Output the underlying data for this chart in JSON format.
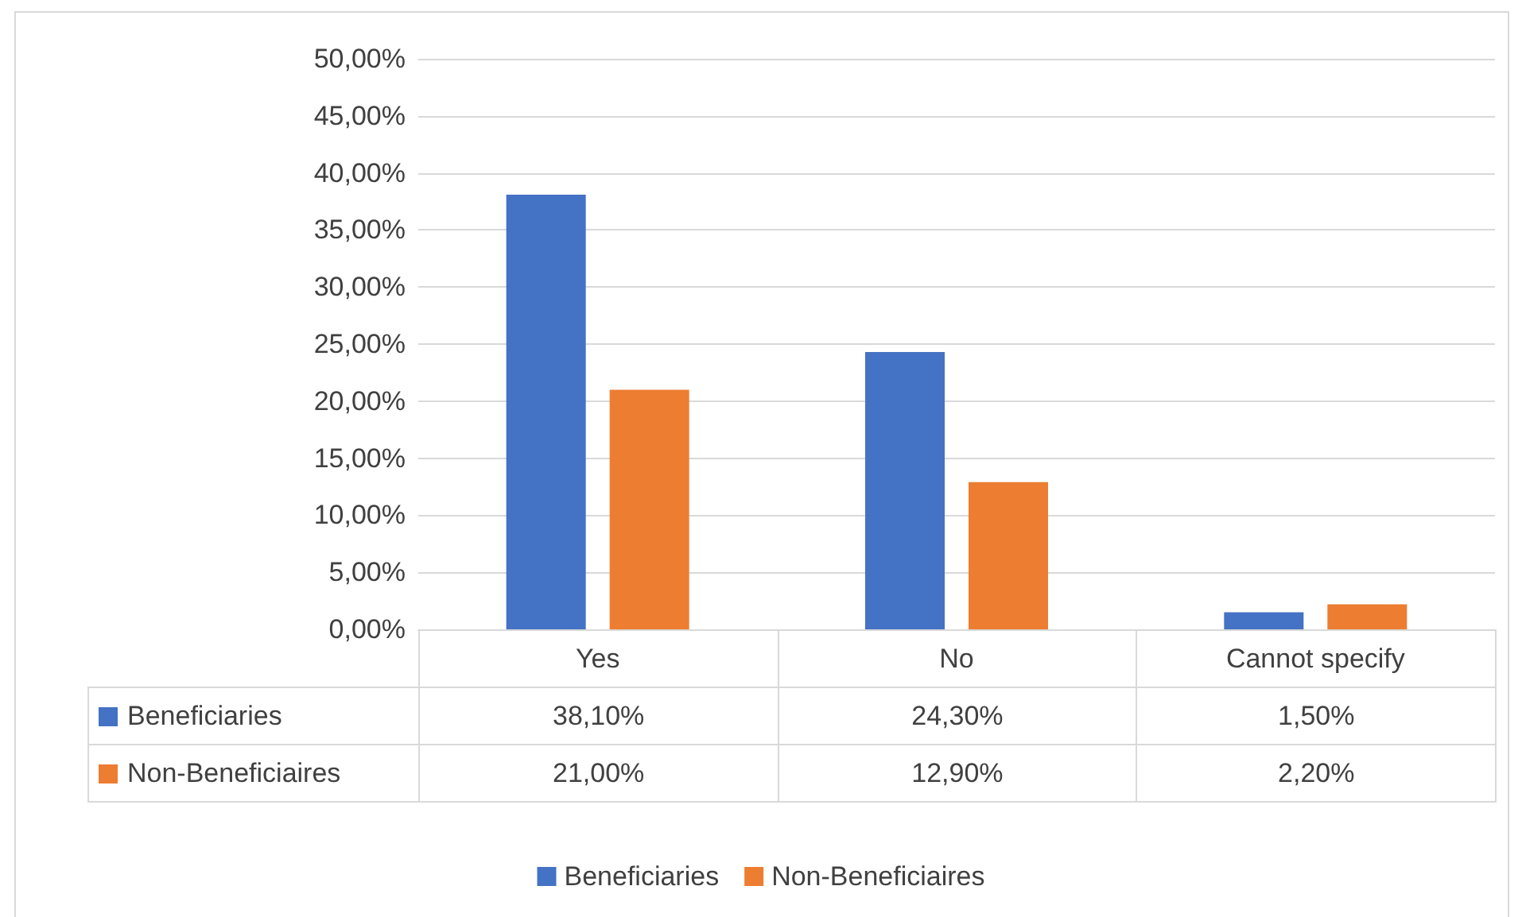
{
  "chart_data": {
    "type": "bar",
    "categories": [
      "Yes",
      "No",
      "Cannot specify"
    ],
    "series": [
      {
        "name": "Beneficiaries",
        "color": "#4472c4",
        "values": [
          38.1,
          24.3,
          1.5
        ],
        "value_labels": [
          "38,10%",
          "24,30%",
          "1,50%"
        ]
      },
      {
        "name": "Non-Beneficiaires",
        "color": "#ed7d31",
        "values": [
          21.0,
          12.9,
          2.2
        ],
        "value_labels": [
          "21,00%",
          "12,90%",
          "2,20%"
        ]
      }
    ],
    "ylim": [
      0,
      50
    ],
    "yticks": [
      {
        "value": 0,
        "label": "0,00%"
      },
      {
        "value": 5,
        "label": "5,00%"
      },
      {
        "value": 10,
        "label": "10,00%"
      },
      {
        "value": 15,
        "label": "15,00%"
      },
      {
        "value": 20,
        "label": "20,00%"
      },
      {
        "value": 25,
        "label": "25,00%"
      },
      {
        "value": 30,
        "label": "30,00%"
      },
      {
        "value": 35,
        "label": "35,00%"
      },
      {
        "value": 40,
        "label": "40,00%"
      },
      {
        "value": 45,
        "label": "45,00%"
      },
      {
        "value": 50,
        "label": "50,00%"
      }
    ],
    "grid": "y",
    "legend": "bottom"
  }
}
